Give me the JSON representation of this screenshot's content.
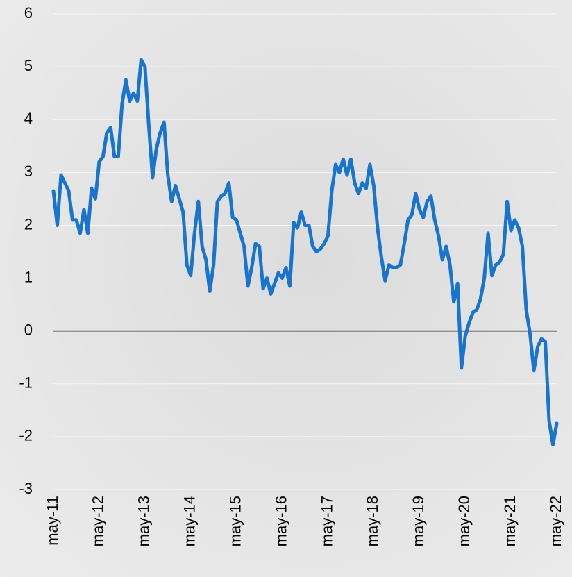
{
  "chart_data": {
    "type": "line",
    "categories": [
      "may-11",
      null,
      null,
      null,
      null,
      null,
      null,
      null,
      null,
      null,
      null,
      null,
      "may-12",
      null,
      null,
      null,
      null,
      null,
      null,
      null,
      null,
      null,
      null,
      null,
      "may-13",
      null,
      null,
      null,
      null,
      null,
      null,
      null,
      null,
      null,
      null,
      null,
      "may-14",
      null,
      null,
      null,
      null,
      null,
      null,
      null,
      null,
      null,
      null,
      null,
      "may-15",
      null,
      null,
      null,
      null,
      null,
      null,
      null,
      null,
      null,
      null,
      null,
      "may-16",
      null,
      null,
      null,
      null,
      null,
      null,
      null,
      null,
      null,
      null,
      null,
      "may-17",
      null,
      null,
      null,
      null,
      null,
      null,
      null,
      null,
      null,
      null,
      null,
      "may-18",
      null,
      null,
      null,
      null,
      null,
      null,
      null,
      null,
      null,
      null,
      null,
      "may-19",
      null,
      null,
      null,
      null,
      null,
      null,
      null,
      null,
      null,
      null,
      null,
      "may-20",
      null,
      null,
      null,
      null,
      null,
      null,
      null,
      null,
      null,
      null,
      null,
      "may-21",
      null,
      null,
      null,
      null,
      null,
      null,
      null,
      null,
      null,
      null,
      null,
      "may-22"
    ],
    "values": [
      2.65,
      2.0,
      2.95,
      2.8,
      2.65,
      2.1,
      2.1,
      1.85,
      2.3,
      1.85,
      2.7,
      2.5,
      3.2,
      3.3,
      3.75,
      3.85,
      3.3,
      3.3,
      4.3,
      4.75,
      4.35,
      4.5,
      4.35,
      5.13,
      5.0,
      3.9,
      2.9,
      3.45,
      3.75,
      3.95,
      2.95,
      2.45,
      2.75,
      2.5,
      2.25,
      1.25,
      1.05,
      1.85,
      2.45,
      1.6,
      1.35,
      0.75,
      1.25,
      2.45,
      2.55,
      2.6,
      2.8,
      2.15,
      2.1,
      1.85,
      1.6,
      0.85,
      1.2,
      1.65,
      1.6,
      0.8,
      1.0,
      0.7,
      0.9,
      1.1,
      1.0,
      1.2,
      0.85,
      2.05,
      1.95,
      2.25,
      2.0,
      2.0,
      1.6,
      1.5,
      1.55,
      1.65,
      1.8,
      2.65,
      3.15,
      3.0,
      3.25,
      2.95,
      3.25,
      2.8,
      2.6,
      2.8,
      2.7,
      3.15,
      2.75,
      1.95,
      1.4,
      0.95,
      1.25,
      1.2,
      1.2,
      1.25,
      1.65,
      2.1,
      2.2,
      2.6,
      2.3,
      2.15,
      2.45,
      2.55,
      2.1,
      1.8,
      1.35,
      1.6,
      1.25,
      0.55,
      0.9,
      -0.7,
      -0.1,
      0.15,
      0.35,
      0.4,
      0.6,
      1.0,
      1.85,
      1.05,
      1.25,
      1.3,
      1.45,
      2.45,
      1.9,
      2.1,
      1.95,
      1.6,
      0.4,
      -0.05,
      -0.75,
      -0.3,
      -0.15,
      -0.2,
      -1.7,
      -2.15,
      -1.75
    ],
    "color": "#1874cd",
    "ylim": [
      -3,
      6
    ],
    "yticks": [
      -3,
      -2,
      -1,
      0,
      1,
      2,
      3,
      4,
      5,
      6
    ],
    "grid": true
  }
}
